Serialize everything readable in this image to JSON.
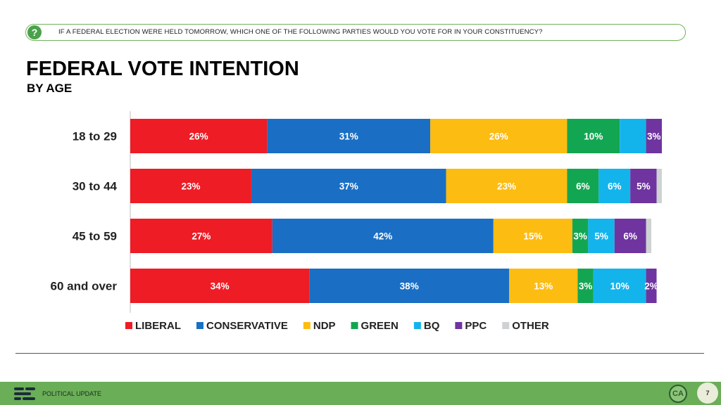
{
  "question": "IF A FEDERAL ELECTION WERE HELD TOMORROW, WHICH ONE OF THE FOLLOWING PARTIES WOULD YOU VOTE FOR IN YOUR CONSTITUENCY?",
  "question_icon": "?",
  "footer": {
    "label": "POLITICAL UPDATE",
    "badge": "CA",
    "page": "7"
  },
  "icons": {
    "question": "question-circle-icon",
    "logo": "political-update-logo-icon"
  },
  "chart_data": {
    "type": "bar",
    "orientation": "horizontal",
    "stacked": true,
    "title": "FEDERAL VOTE INTENTION",
    "subtitle": "BY AGE",
    "categories": [
      "18 to 29",
      "30 to 44",
      "45 to 59",
      "60 and over"
    ],
    "series": [
      {
        "name": "LIBERAL",
        "color": "#ee1c25",
        "values": [
          26,
          23,
          27,
          34
        ],
        "labels": [
          "26%",
          "23%",
          "27%",
          "34%"
        ]
      },
      {
        "name": "CONSERVATIVE",
        "color": "#1a6fc4",
        "values": [
          31,
          37,
          42,
          38
        ],
        "labels": [
          "31%",
          "37%",
          "42%",
          "38%"
        ]
      },
      {
        "name": "NDP",
        "color": "#fdbc12",
        "values": [
          26,
          23,
          15,
          13
        ],
        "labels": [
          "26%",
          "23%",
          "15%",
          "13%"
        ]
      },
      {
        "name": "GREEN",
        "color": "#13a652",
        "values": [
          10,
          6,
          3,
          3
        ],
        "labels": [
          "10%",
          "6%",
          "3%",
          "3%"
        ]
      },
      {
        "name": "BQ",
        "color": "#13b4ec",
        "values": [
          5,
          6,
          5,
          10
        ],
        "labels": [
          "",
          "6%",
          "5%",
          "10%"
        ]
      },
      {
        "name": "PPC",
        "color": "#6f34a0",
        "values": [
          3,
          5,
          6,
          2
        ],
        "labels": [
          "3%",
          "5%",
          "6%",
          "2%"
        ]
      },
      {
        "name": "OTHER",
        "color": "#cfd2d3",
        "values": [
          0,
          1,
          1,
          0
        ],
        "labels": [
          "",
          "",
          "",
          ""
        ]
      }
    ],
    "xlim": [
      0,
      101
    ],
    "grid": false,
    "legend": "bottom"
  }
}
